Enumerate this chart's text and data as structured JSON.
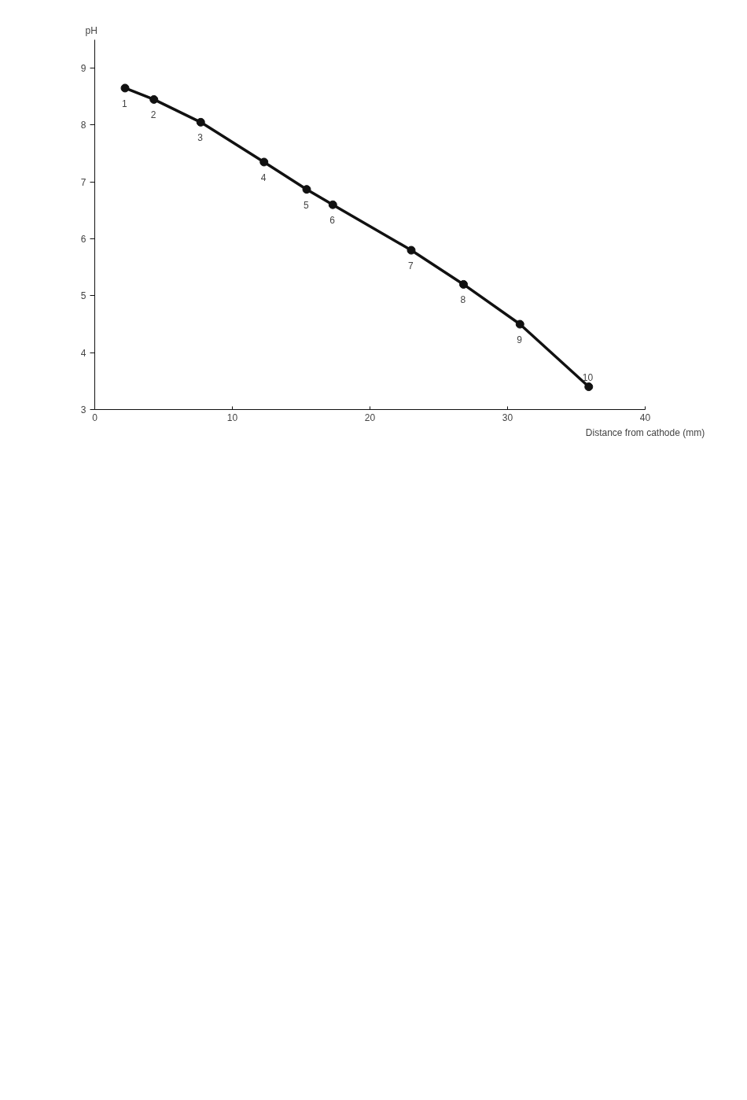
{
  "chart_data": {
    "type": "line",
    "ylabel": "pH",
    "xlabel": "Distance from cathode (mm)",
    "x": [
      2.2,
      4.3,
      7.7,
      12.3,
      15.4,
      17.3,
      23.0,
      26.8,
      30.9,
      35.9
    ],
    "series": [
      {
        "color": "#111111",
        "values": [
          8.65,
          8.45,
          8.05,
          7.35,
          6.87,
          6.6,
          5.8,
          5.2,
          4.5,
          3.4
        ]
      }
    ],
    "marker": "circle",
    "line_style": "solid",
    "grid": false,
    "xlim": [
      0,
      40
    ],
    "xticks": [
      0,
      10,
      20,
      30,
      40
    ],
    "ylim": [
      3,
      9.5
    ],
    "yticks": [
      3,
      4,
      5,
      6,
      7,
      8,
      9
    ],
    "annotations": [
      {
        "text": "1",
        "x": 2.2,
        "y": 8.65
      },
      {
        "text": "2",
        "x": 4.3,
        "y": 8.45
      },
      {
        "text": "3",
        "x": 7.7,
        "y": 8.05
      },
      {
        "text": "4",
        "x": 12.3,
        "y": 7.35
      },
      {
        "text": "5",
        "x": 15.4,
        "y": 6.87
      },
      {
        "text": "6",
        "x": 17.3,
        "y": 6.6
      },
      {
        "text": "7",
        "x": 23.0,
        "y": 5.8
      },
      {
        "text": "8",
        "x": 26.8,
        "y": 5.2
      },
      {
        "text": "9",
        "x": 30.9,
        "y": 4.5
      },
      {
        "text": "10",
        "x": 35.9,
        "y": 3.4
      }
    ]
  }
}
